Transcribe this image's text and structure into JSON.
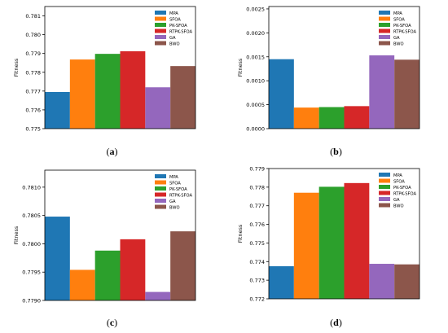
{
  "series_names": [
    "MPA",
    "SFOA",
    "PK-SFOA",
    "RTPK-SFOA",
    "GA",
    "BWO"
  ],
  "colors": [
    "#1f77b4",
    "#ff7f0e",
    "#2ca02c",
    "#d62728",
    "#9467bd",
    "#8c564b"
  ],
  "chart_data": [
    {
      "type": "bar",
      "label": "a",
      "ylabel": "Fitness",
      "ylim": [
        0.775,
        0.7815
      ],
      "yticks": [
        "0.775",
        "0.776",
        "0.777",
        "0.778",
        "0.779",
        "0.780",
        "0.781"
      ],
      "ytick_values": [
        0.775,
        0.776,
        0.777,
        0.778,
        0.779,
        0.78,
        0.781
      ],
      "categories": [
        "MPA",
        "SFOA",
        "PK-SFOA",
        "RTPK-SFOA",
        "GA",
        "BWO"
      ],
      "values": [
        0.77695,
        0.77868,
        0.77898,
        0.77912,
        0.7772,
        0.77833
      ],
      "legend": "top-right",
      "grid": false
    },
    {
      "type": "bar",
      "label": "b",
      "ylabel": "Fitness",
      "ylim": [
        0,
        0.00255
      ],
      "yticks": [
        "0.0000",
        "0.0005",
        "0.0010",
        "0.0015",
        "0.0020",
        "0.0025"
      ],
      "ytick_values": [
        0,
        0.0005,
        0.001,
        0.0015,
        0.002,
        0.0025
      ],
      "categories": [
        "MPA",
        "SFOA",
        "PK-SFOA",
        "RTPK-SFOA",
        "GA",
        "BWO"
      ],
      "values": [
        0.00145,
        0.00044,
        0.00045,
        0.00047,
        0.00153,
        0.00144
      ],
      "legend": "top-right",
      "grid": false
    },
    {
      "type": "bar",
      "label": "c",
      "ylabel": "Fitness",
      "ylim": [
        0.779,
        0.7813
      ],
      "yticks": [
        "0.7790",
        "0.7795",
        "0.7800",
        "0.7805",
        "0.7810"
      ],
      "ytick_values": [
        0.779,
        0.7795,
        0.78,
        0.7805,
        0.781
      ],
      "categories": [
        "MPA",
        "SFOA",
        "PK-SFOA",
        "RTPK-SFOA",
        "GA",
        "BWO"
      ],
      "values": [
        0.78048,
        0.77954,
        0.77988,
        0.78008,
        0.77915,
        0.78022
      ],
      "legend": "top-right",
      "grid": false
    },
    {
      "type": "bar",
      "label": "d",
      "ylabel": "Fitness",
      "ylim": [
        0.772,
        0.779
      ],
      "yticks": [
        "0.772",
        "0.773",
        "0.774",
        "0.775",
        "0.776",
        "0.777",
        "0.778",
        "0.779"
      ],
      "ytick_values": [
        0.772,
        0.773,
        0.774,
        0.775,
        0.776,
        0.777,
        0.778,
        0.779
      ],
      "categories": [
        "MPA",
        "SFOA",
        "PK-SFOA",
        "RTPK-SFOA",
        "GA",
        "BWO"
      ],
      "values": [
        0.77375,
        0.7777,
        0.77802,
        0.77822,
        0.77388,
        0.77385
      ],
      "legend": "top-right",
      "grid": false
    }
  ]
}
